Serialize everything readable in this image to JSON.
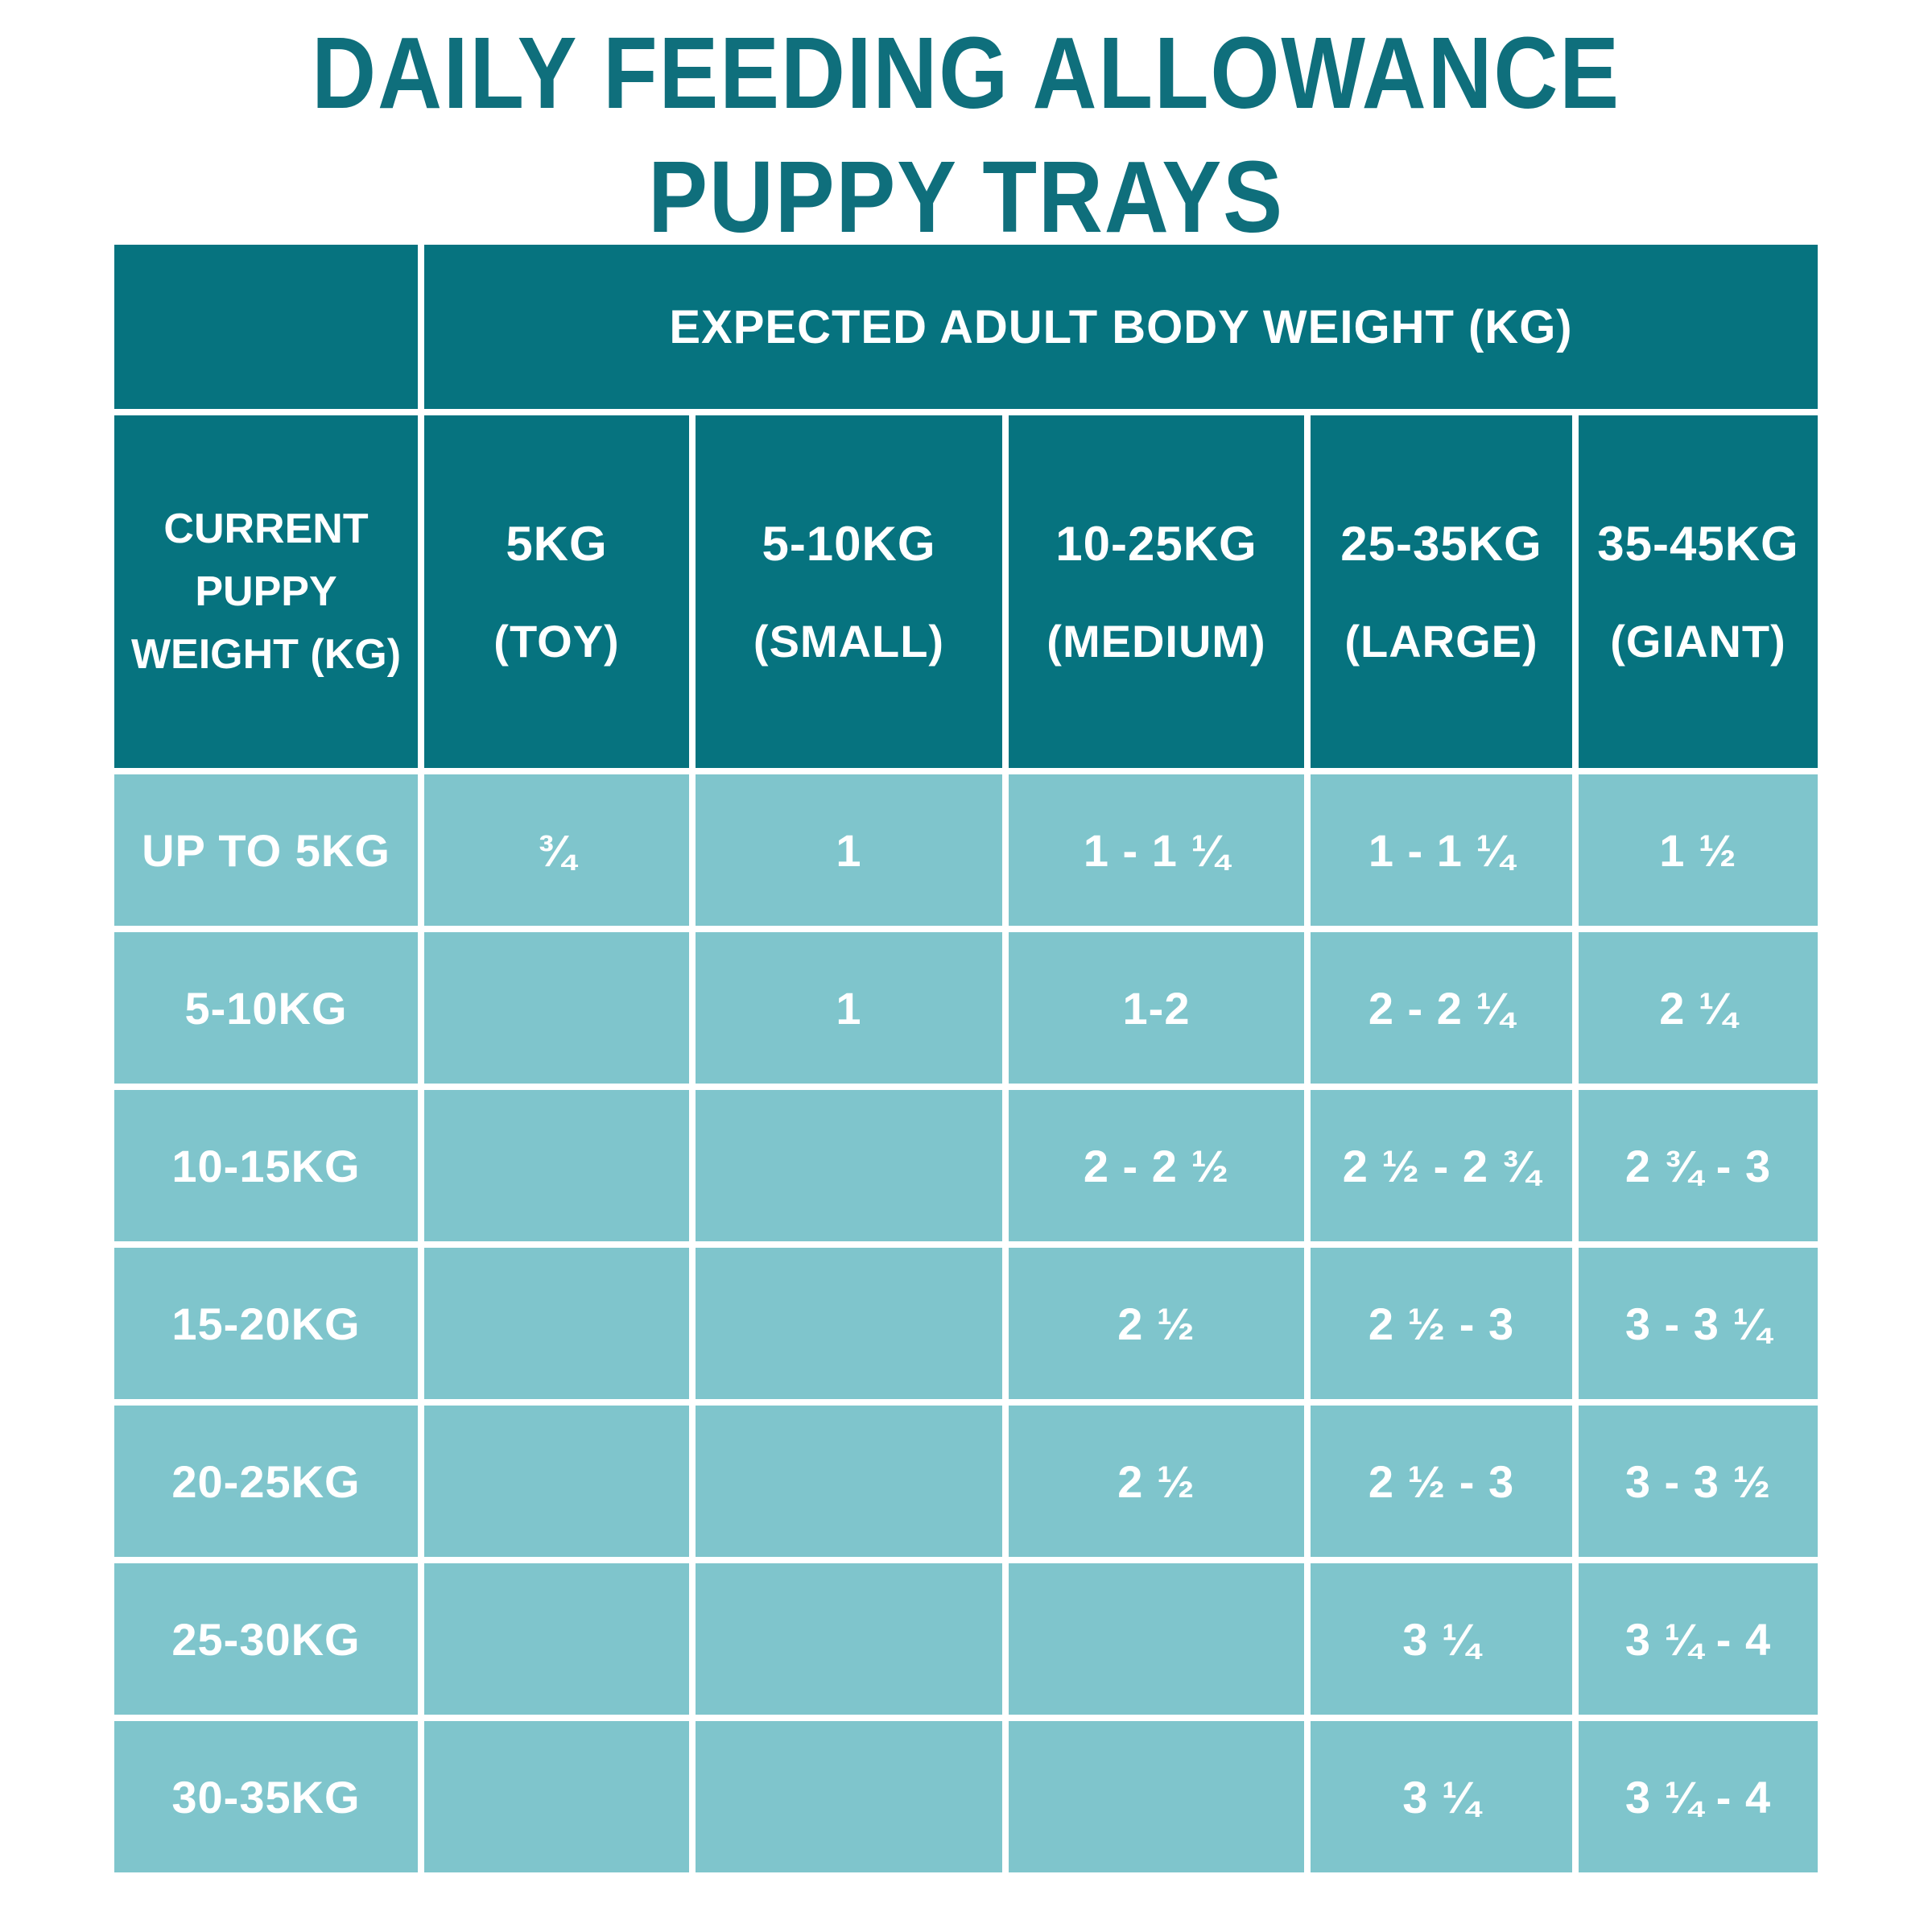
{
  "title": {
    "line1": "DAILY FEEDING ALLOWANCE",
    "line2": "PUPPY TRAYS"
  },
  "colors": {
    "dark_teal": "#06737f",
    "light_teal": "#7fc5cc",
    "title_teal": "#0f6f7c",
    "text_white": "#ffffff"
  },
  "chart_data": {
    "type": "table",
    "title": "DAILY FEEDING ALLOWANCE PUPPY TRAYS",
    "column_group_label": "EXPECTED ADULT BODY WEIGHT (KG)",
    "row_group_label": "CURRENT PUPPY WEIGHT (KG)",
    "columns": [
      {
        "weight": "5KG",
        "size": "(TOY)"
      },
      {
        "weight": "5-10KG",
        "size": "(SMALL)"
      },
      {
        "weight": "10-25KG",
        "size": "(MEDIUM)"
      },
      {
        "weight": "25-35KG",
        "size": "(LARGE)"
      },
      {
        "weight": "35-45KG",
        "size": "(GIANT)"
      }
    ],
    "rows": [
      {
        "label": "UP TO 5KG",
        "values": [
          "¾",
          "1",
          "1 - 1 ¼",
          "1 - 1 ¼",
          "1 ½"
        ]
      },
      {
        "label": "5-10KG",
        "values": [
          "",
          "1",
          "1-2",
          "2 - 2 ¼",
          "2 ¼"
        ]
      },
      {
        "label": "10-15KG",
        "values": [
          "",
          "",
          "2 - 2 ½",
          "2 ½ - 2 ¾",
          "2 ¾ - 3"
        ]
      },
      {
        "label": "15-20KG",
        "values": [
          "",
          "",
          "2 ½",
          "2 ½ - 3",
          "3 - 3 ¼"
        ]
      },
      {
        "label": "20-25KG",
        "values": [
          "",
          "",
          "2 ½",
          "2 ½ - 3",
          "3 - 3 ½"
        ]
      },
      {
        "label": "25-30KG",
        "values": [
          "",
          "",
          "",
          "3 ¼",
          "3 ¼ - 4"
        ]
      },
      {
        "label": "30-35KG",
        "values": [
          "",
          "",
          "",
          "3 ¼",
          "3 ¼ - 4"
        ]
      }
    ]
  }
}
